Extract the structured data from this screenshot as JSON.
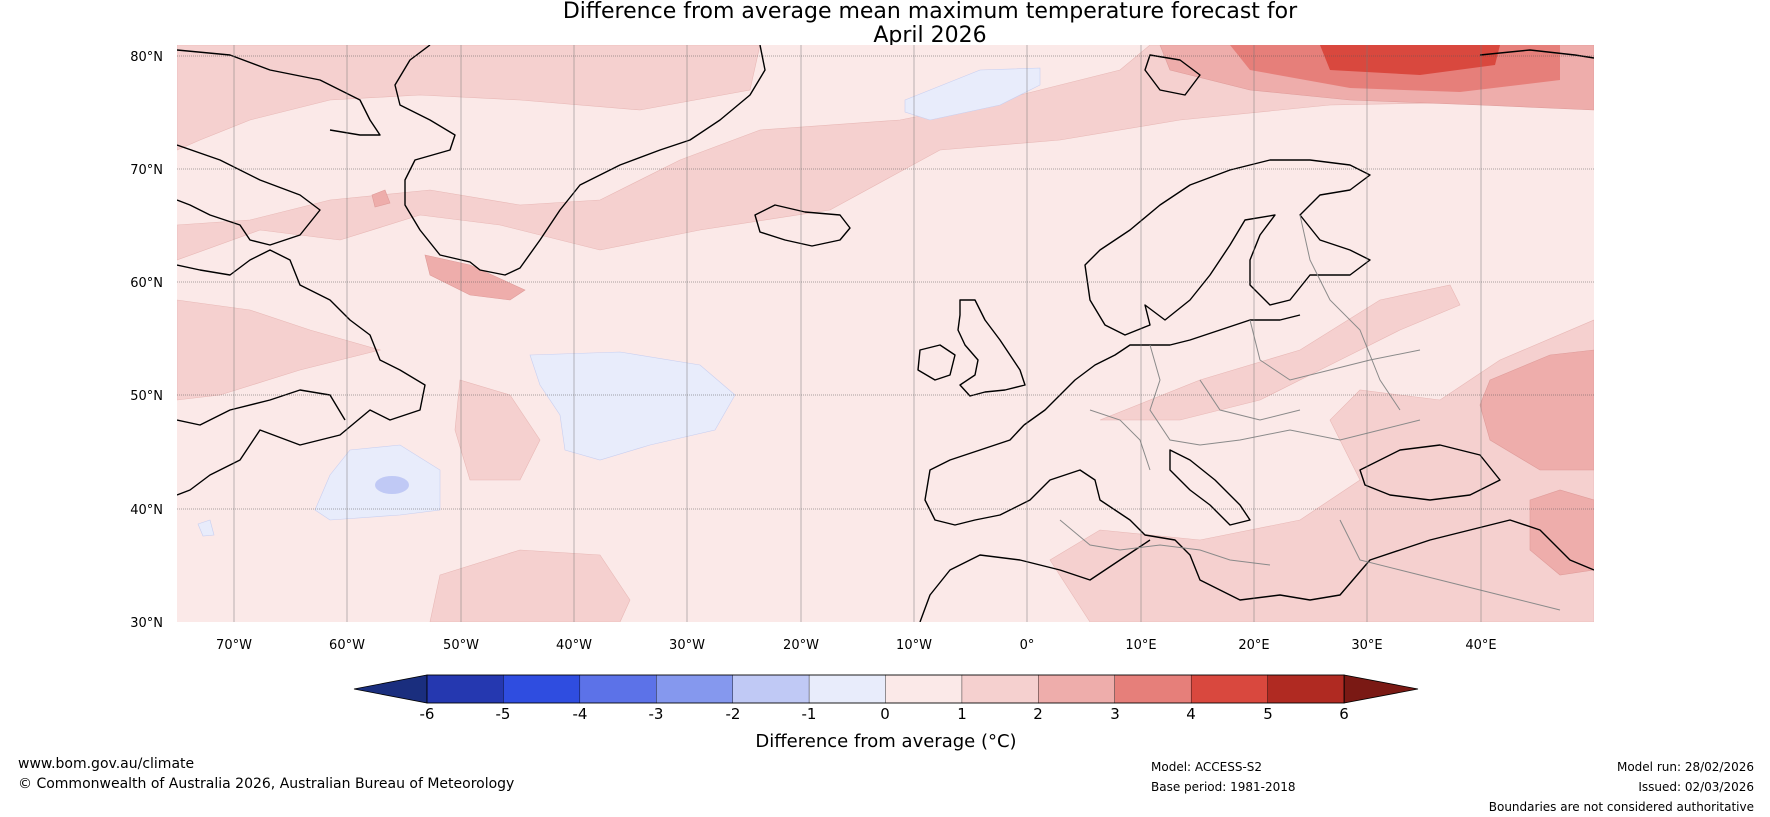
{
  "title": {
    "line1": "Difference from average mean maximum temperature forecast for",
    "line2": "April 2026"
  },
  "map": {
    "lat_labels": [
      "80°N",
      "70°N",
      "60°N",
      "50°N",
      "40°N",
      "30°N"
    ],
    "lon_labels": [
      "70°W",
      "60°W",
      "50°W",
      "40°W",
      "30°W",
      "20°W",
      "10°W",
      "0°",
      "10°E",
      "20°E",
      "30°E",
      "40°E"
    ],
    "lon_range": [
      -75,
      50
    ],
    "lat_range": [
      30,
      81
    ]
  },
  "colorbar": {
    "label": "Difference from average (°C)",
    "ticks": [
      "-6",
      "-5",
      "-4",
      "-3",
      "-2",
      "-1",
      "0",
      "1",
      "2",
      "3",
      "4",
      "5",
      "6"
    ],
    "colors": {
      "below_min": "#1a2e7e",
      "bins": [
        "#2538b0",
        "#2f4de0",
        "#5c72e8",
        "#8598ee",
        "#c0c9f5",
        "#e8ecfb",
        "#fbe9e8",
        "#f5d0cf",
        "#eeadab",
        "#e67f7a",
        "#d9483e",
        "#b02a22"
      ],
      "above_max": "#7a1914"
    }
  },
  "footer": {
    "website": "www.bom.gov.au/climate",
    "copyright": "© Commonwealth of Australia 2026, Australian Bureau of Meteorology",
    "model": "Model: ACCESS-S2",
    "base_period": "Base period: 1981-2018",
    "model_run": "Model run: 28/02/2026",
    "issued": "Issued: 02/03/2026",
    "disclaimer": "Boundaries are not considered authoritative"
  }
}
